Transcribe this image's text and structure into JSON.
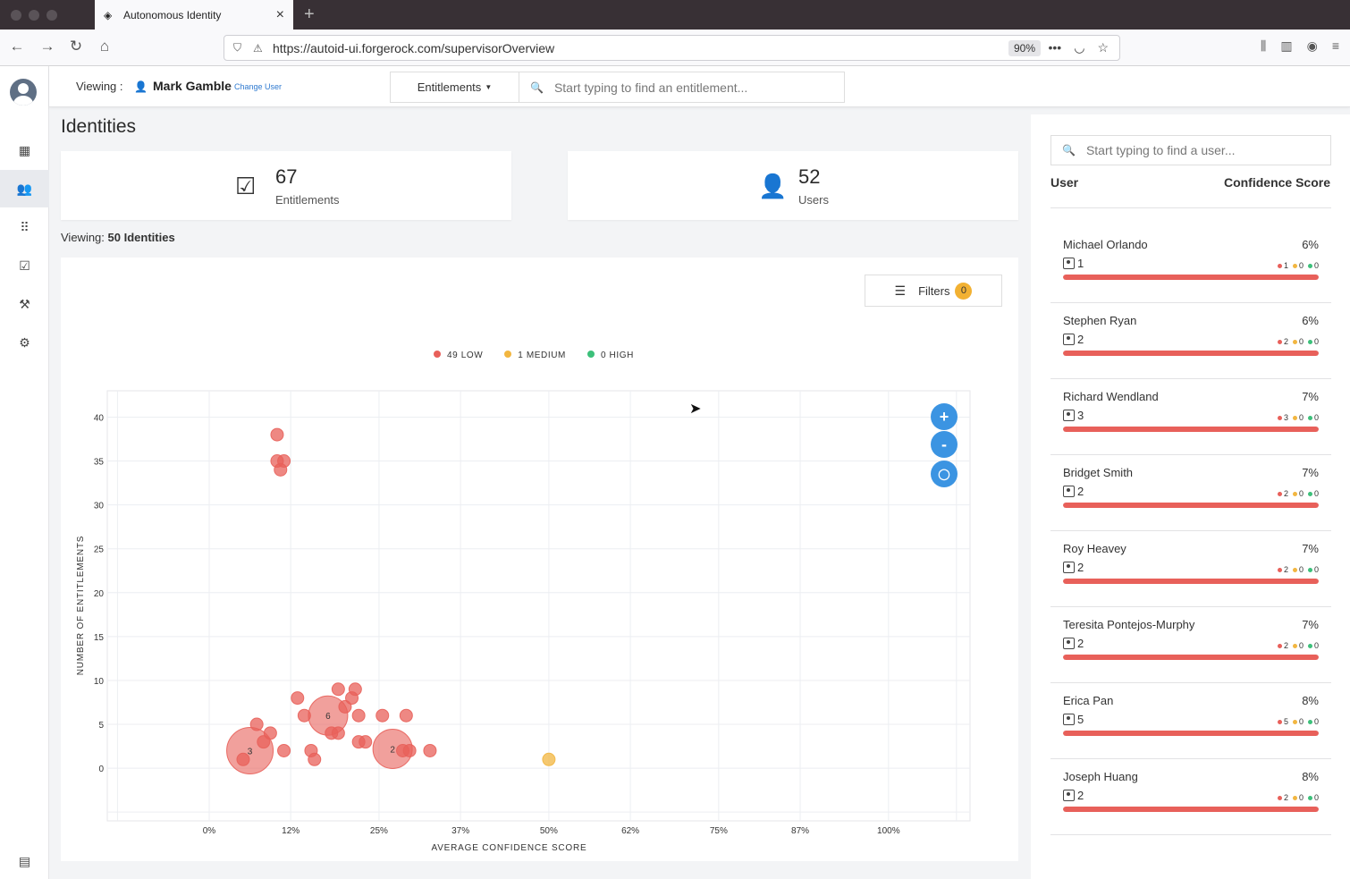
{
  "browser": {
    "tab_title": "Autonomous Identity",
    "url": "https://autoid-ui.forgerock.com/supervisorOverview",
    "zoom": "90%"
  },
  "topbar": {
    "viewing_label": "Viewing :",
    "user_name": "Mark Gamble",
    "change_user": "Change User",
    "dropdown_label": "Entitlements",
    "search_placeholder": "Start typing to find an entitlement..."
  },
  "page": {
    "title": "Identities",
    "entitlements_count": "67",
    "entitlements_label": "Entitlements",
    "users_count": "52",
    "users_label": "Users",
    "viewing_prefix": "Viewing:",
    "viewing_value": "50 Identities"
  },
  "chart_panel": {
    "filters_label": "Filters",
    "filters_count": "0",
    "legend": [
      {
        "label": "49 LOW",
        "color": "#e8605a"
      },
      {
        "label": "1 MEDIUM",
        "color": "#f2b640"
      },
      {
        "label": "0 HIGH",
        "color": "#3cc07a"
      }
    ],
    "zoom_in": "+",
    "zoom_out": "-"
  },
  "chart_data": {
    "type": "scatter",
    "xlabel": "AVERAGE CONFIDENCE SCORE",
    "ylabel": "NUMBER OF ENTITLEMENTS",
    "x_ticks": [
      "0%",
      "12%",
      "25%",
      "37%",
      "50%",
      "62%",
      "75%",
      "87%",
      "100%"
    ],
    "y_ticks": [
      "0",
      "5",
      "10",
      "15",
      "20",
      "25",
      "30",
      "35",
      "40"
    ],
    "xlim": [
      -0.15,
      1.12
    ],
    "ylim": [
      -6,
      43
    ],
    "points": [
      {
        "x": 0.1,
        "y": 38,
        "r": 1,
        "risk": "low"
      },
      {
        "x": 0.1,
        "y": 35,
        "r": 1,
        "risk": "low"
      },
      {
        "x": 0.11,
        "y": 35,
        "r": 1,
        "risk": "low"
      },
      {
        "x": 0.105,
        "y": 34,
        "r": 1,
        "risk": "low"
      },
      {
        "x": 0.06,
        "y": 2,
        "r": 3,
        "label": "3",
        "risk": "low"
      },
      {
        "x": 0.07,
        "y": 5,
        "r": 1,
        "risk": "low"
      },
      {
        "x": 0.08,
        "y": 3,
        "r": 1,
        "risk": "low"
      },
      {
        "x": 0.05,
        "y": 1,
        "r": 1,
        "risk": "low"
      },
      {
        "x": 0.09,
        "y": 4,
        "r": 1,
        "risk": "low"
      },
      {
        "x": 0.11,
        "y": 2,
        "r": 1,
        "risk": "low"
      },
      {
        "x": 0.13,
        "y": 8,
        "r": 1,
        "risk": "low"
      },
      {
        "x": 0.14,
        "y": 6,
        "r": 1,
        "risk": "low"
      },
      {
        "x": 0.15,
        "y": 2,
        "r": 1,
        "risk": "low"
      },
      {
        "x": 0.155,
        "y": 1,
        "r": 1,
        "risk": "low"
      },
      {
        "x": 0.175,
        "y": 6,
        "r": 2.5,
        "label": "6",
        "risk": "low"
      },
      {
        "x": 0.19,
        "y": 9,
        "r": 1,
        "risk": "low"
      },
      {
        "x": 0.2,
        "y": 7,
        "r": 1,
        "risk": "low"
      },
      {
        "x": 0.21,
        "y": 8,
        "r": 1,
        "risk": "low"
      },
      {
        "x": 0.215,
        "y": 9,
        "r": 1,
        "risk": "low"
      },
      {
        "x": 0.22,
        "y": 6,
        "r": 1,
        "risk": "low"
      },
      {
        "x": 0.18,
        "y": 4,
        "r": 1,
        "risk": "low"
      },
      {
        "x": 0.19,
        "y": 4,
        "r": 1,
        "risk": "low"
      },
      {
        "x": 0.22,
        "y": 3,
        "r": 1,
        "risk": "low"
      },
      {
        "x": 0.23,
        "y": 3,
        "r": 1,
        "risk": "low"
      },
      {
        "x": 0.27,
        "y": 2.2,
        "r": 2.5,
        "label": "2",
        "risk": "low"
      },
      {
        "x": 0.255,
        "y": 6,
        "r": 1,
        "risk": "low"
      },
      {
        "x": 0.285,
        "y": 2,
        "r": 1,
        "risk": "low"
      },
      {
        "x": 0.29,
        "y": 6,
        "r": 1,
        "risk": "low"
      },
      {
        "x": 0.295,
        "y": 2,
        "r": 1,
        "risk": "low"
      },
      {
        "x": 0.325,
        "y": 2,
        "r": 1,
        "risk": "low"
      },
      {
        "x": 0.5,
        "y": 1,
        "r": 1,
        "risk": "medium"
      }
    ]
  },
  "user_list": {
    "search_placeholder": "Start typing to find a user...",
    "col_user": "User",
    "col_score": "Confidence Score",
    "users": [
      {
        "name": "Michael Orlando",
        "score": "6%",
        "count": "1",
        "low": "1",
        "medium": "0",
        "high": "0",
        "fill": 1.0
      },
      {
        "name": "Stephen Ryan",
        "score": "6%",
        "count": "2",
        "low": "2",
        "medium": "0",
        "high": "0",
        "fill": 1.0
      },
      {
        "name": "Richard Wendland",
        "score": "7%",
        "count": "3",
        "low": "3",
        "medium": "0",
        "high": "0",
        "fill": 1.0
      },
      {
        "name": "Bridget Smith",
        "score": "7%",
        "count": "2",
        "low": "2",
        "medium": "0",
        "high": "0",
        "fill": 1.0
      },
      {
        "name": "Roy Heavey",
        "score": "7%",
        "count": "2",
        "low": "2",
        "medium": "0",
        "high": "0",
        "fill": 1.0
      },
      {
        "name": "Teresita Pontejos-Murphy",
        "score": "7%",
        "count": "2",
        "low": "2",
        "medium": "0",
        "high": "0",
        "fill": 1.0
      },
      {
        "name": "Erica Pan",
        "score": "8%",
        "count": "5",
        "low": "5",
        "medium": "0",
        "high": "0",
        "fill": 1.0
      },
      {
        "name": "Joseph Huang",
        "score": "8%",
        "count": "2",
        "low": "2",
        "medium": "0",
        "high": "0",
        "fill": 1.0
      }
    ]
  },
  "colors": {
    "low": "#e8605a",
    "medium": "#f2b640",
    "high": "#3cc07a",
    "accent": "#3b94e2"
  }
}
